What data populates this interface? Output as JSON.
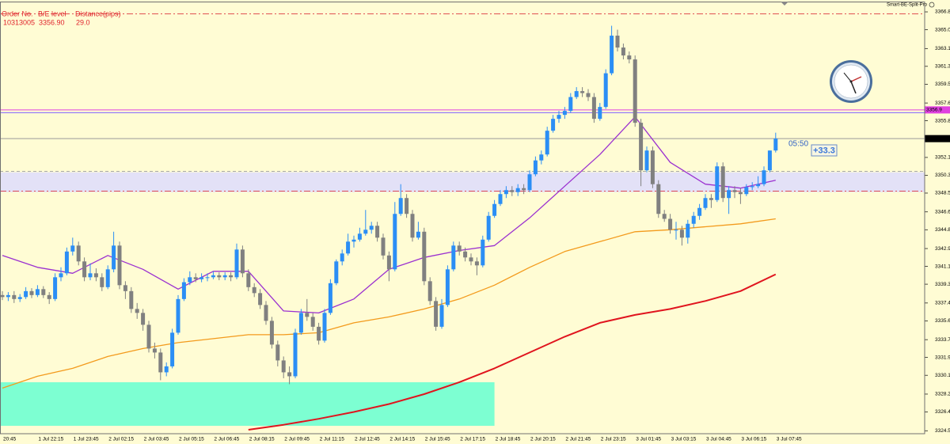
{
  "chart_data": {
    "type": "candlestick",
    "indicator_name": "Smart-BE-Split-Pro",
    "header": {
      "columns": [
        "Order No.",
        "B/E level",
        "Distance(pips)"
      ],
      "row": [
        "10313005",
        "3356.90",
        "29.0"
      ]
    },
    "countdown": "05:50",
    "profit_label": "+33.3",
    "up_color": "#2b8ef5",
    "down_color": "#808080",
    "ylim": [
      3324.2,
      3368.0
    ],
    "yticks": [
      3366.8,
      {
        "value": 3365.0,
        "label": "3365.0"
      },
      3363.1,
      3361.3,
      3359.5,
      3357.6,
      3355.8,
      3352.1,
      3350.3,
      3348.5,
      3346.6,
      3344.8,
      3342.9,
      3341.1,
      3339.3,
      3337.4,
      3335.6,
      3333.7,
      3331.9,
      3330.1,
      3328.2,
      3326.4,
      3324.5
    ],
    "current_price": {
      "value": 3354.0,
      "label": "3354.0"
    },
    "be_level": {
      "value": 3356.9,
      "label": "3356.9",
      "line_colors": [
        "#e040e0",
        "#8060ff"
      ]
    },
    "levels": [
      {
        "value": 3366.6,
        "color": "#e05050",
        "dash": "dashdot"
      },
      {
        "value": 3350.7,
        "color": "#a8a8a8",
        "dash": "dash"
      },
      {
        "value": 3348.7,
        "color": "#e05050",
        "dash": "dashdot"
      }
    ],
    "zone": {
      "from": 3348.6,
      "to": 3350.6,
      "color": "#e3e1f7"
    },
    "box": {
      "from": 3325.0,
      "to": 3329.4,
      "x_end": "2 Jul 18:45",
      "color": "#7dffd2"
    },
    "categories": [
      "20:45",
      null,
      null,
      null,
      null,
      null,
      "1 Jul 22:15",
      null,
      null,
      null,
      null,
      null,
      "1 Jul 23:45",
      null,
      null,
      null,
      null,
      null,
      "2 Jul 02:15",
      null,
      null,
      null,
      null,
      null,
      "2 Jul 03:45",
      null,
      null,
      null,
      null,
      null,
      "2 Jul 05:15",
      null,
      null,
      null,
      null,
      null,
      "2 Jul 06:45",
      null,
      null,
      null,
      null,
      null,
      "2 Jul 08:15",
      null,
      null,
      null,
      null,
      null,
      "2 Jul 09:45",
      null,
      null,
      null,
      null,
      null,
      "2 Jul 11:15",
      null,
      null,
      null,
      null,
      null,
      "2 Jul 12:45",
      null,
      null,
      null,
      null,
      null,
      "2 Jul 14:15",
      null,
      null,
      null,
      null,
      null,
      "2 Jul 15:45",
      null,
      null,
      null,
      null,
      null,
      "2 Jul 17:15",
      null,
      null,
      null,
      null,
      null,
      "2 Jul 18:45",
      null,
      null,
      null,
      null,
      null,
      "2 Jul 20:15",
      null,
      null,
      null,
      null,
      null,
      "2 Jul 21:45",
      null,
      null,
      null,
      null,
      null,
      "2 Jul 23:15",
      null,
      null,
      null,
      null,
      null,
      "3 Jul 01:45",
      null,
      null,
      null,
      null,
      null,
      "3 Jul 03:15",
      null,
      null,
      null,
      null,
      null,
      "3 Jul 04:45",
      null,
      null,
      null,
      null,
      null,
      "3 Jul 06:15",
      null,
      null,
      null,
      null,
      null,
      "3 Jul 07:45"
    ],
    "ohlc": [
      [
        3338.2,
        3338.6,
        3337.7,
        3338.0
      ],
      [
        3338.0,
        3338.5,
        3337.6,
        3338.2
      ],
      [
        3338.2,
        3338.6,
        3337.4,
        3337.8
      ],
      [
        3337.8,
        3338.3,
        3337.5,
        3338.0
      ],
      [
        3338.0,
        3339.0,
        3337.8,
        3338.6
      ],
      [
        3338.6,
        3338.9,
        3337.9,
        3338.2
      ],
      [
        3338.2,
        3339.2,
        3338.0,
        3338.8
      ],
      [
        3338.8,
        3339.1,
        3337.9,
        3338.2
      ],
      [
        3338.2,
        3338.5,
        3337.3,
        3337.8
      ],
      [
        3337.8,
        3340.4,
        3337.6,
        3340.0
      ],
      [
        3340.0,
        3341.0,
        3339.6,
        3340.4
      ],
      [
        3340.4,
        3343.0,
        3340.2,
        3342.6
      ],
      [
        3342.6,
        3344.0,
        3342.2,
        3343.2
      ],
      [
        3343.2,
        3343.6,
        3341.2,
        3341.6
      ],
      [
        3341.6,
        3342.0,
        3339.6,
        3340.0
      ],
      [
        3340.0,
        3341.4,
        3339.7,
        3340.4
      ],
      [
        3340.4,
        3340.9,
        3339.6,
        3340.0
      ],
      [
        3340.0,
        3340.4,
        3338.6,
        3339.0
      ],
      [
        3339.0,
        3341.2,
        3338.8,
        3340.8
      ],
      [
        3340.8,
        3344.6,
        3340.5,
        3343.2
      ],
      [
        3343.2,
        3343.6,
        3338.8,
        3339.2
      ],
      [
        3339.2,
        3339.6,
        3337.8,
        3338.6
      ],
      [
        3338.6,
        3339.0,
        3336.4,
        3336.8
      ],
      [
        3336.8,
        3337.4,
        3335.8,
        3336.4
      ],
      [
        3336.4,
        3336.8,
        3334.6,
        3335.2
      ],
      [
        3335.2,
        3335.6,
        3332.4,
        3332.8
      ],
      [
        3332.8,
        3333.4,
        3331.8,
        3332.4
      ],
      [
        3332.4,
        3332.8,
        3329.6,
        3330.4
      ],
      [
        3330.4,
        3331.4,
        3330.0,
        3331.0
      ],
      [
        3331.0,
        3334.8,
        3330.8,
        3334.4
      ],
      [
        3334.4,
        3338.2,
        3334.2,
        3337.8
      ],
      [
        3337.8,
        3339.9,
        3337.6,
        3339.5
      ],
      [
        3339.5,
        3340.6,
        3339.2,
        3340.0
      ],
      [
        3340.0,
        3340.4,
        3339.5,
        3339.8
      ],
      [
        3339.8,
        3340.4,
        3339.5,
        3340.0
      ],
      [
        3340.0,
        3340.4,
        3339.6,
        3340.0
      ],
      [
        3340.0,
        3340.6,
        3339.8,
        3340.2
      ],
      [
        3340.2,
        3340.5,
        3339.7,
        3340.0
      ],
      [
        3340.0,
        3340.5,
        3339.7,
        3340.2
      ],
      [
        3340.2,
        3340.5,
        3339.6,
        3340.0
      ],
      [
        3340.0,
        3343.4,
        3339.8,
        3342.8
      ],
      [
        3342.8,
        3343.2,
        3340.0,
        3340.4
      ],
      [
        3340.4,
        3340.8,
        3338.6,
        3339.0
      ],
      [
        3339.0,
        3339.4,
        3338.0,
        3338.4
      ],
      [
        3338.4,
        3338.8,
        3336.8,
        3337.2
      ],
      [
        3337.2,
        3337.6,
        3335.2,
        3335.6
      ],
      [
        3335.6,
        3336.0,
        3332.8,
        3333.2
      ],
      [
        3333.2,
        3333.6,
        3331.0,
        3331.6
      ],
      [
        3331.6,
        3332.0,
        3329.8,
        3330.4
      ],
      [
        3330.4,
        3331.0,
        3329.2,
        3330.0
      ],
      [
        3330.0,
        3334.8,
        3329.8,
        3334.4
      ],
      [
        3334.4,
        3336.8,
        3334.2,
        3336.4
      ],
      [
        3336.4,
        3337.8,
        3335.6,
        3336.0
      ],
      [
        3336.0,
        3336.4,
        3334.6,
        3335.0
      ],
      [
        3335.0,
        3335.4,
        3333.2,
        3333.6
      ],
      [
        3333.6,
        3336.8,
        3333.4,
        3336.4
      ],
      [
        3336.4,
        3339.8,
        3336.2,
        3339.4
      ],
      [
        3339.4,
        3341.8,
        3339.2,
        3341.6
      ],
      [
        3341.6,
        3342.8,
        3341.2,
        3342.4
      ],
      [
        3342.4,
        3344.4,
        3342.2,
        3343.6
      ],
      [
        3343.6,
        3344.2,
        3343.0,
        3343.8
      ],
      [
        3343.8,
        3345.0,
        3343.6,
        3344.4
      ],
      [
        3344.4,
        3346.8,
        3344.2,
        3344.8
      ],
      [
        3344.8,
        3345.6,
        3344.4,
        3345.2
      ],
      [
        3345.2,
        3345.6,
        3343.6,
        3344.0
      ],
      [
        3344.0,
        3344.4,
        3341.8,
        3342.2
      ],
      [
        3342.2,
        3342.6,
        3339.6,
        3340.8
      ],
      [
        3340.8,
        3347.6,
        3340.6,
        3346.4
      ],
      [
        3346.4,
        3349.4,
        3346.2,
        3348.0
      ],
      [
        3348.0,
        3348.4,
        3346.0,
        3346.4
      ],
      [
        3346.4,
        3346.8,
        3343.6,
        3344.0
      ],
      [
        3344.0,
        3345.6,
        3343.8,
        3344.6
      ],
      [
        3344.6,
        3345.0,
        3339.2,
        3339.6
      ],
      [
        3339.6,
        3340.0,
        3337.2,
        3337.6
      ],
      [
        3337.6,
        3338.0,
        3334.6,
        3335.0
      ],
      [
        3335.0,
        3337.8,
        3334.8,
        3337.2
      ],
      [
        3337.2,
        3341.2,
        3337.0,
        3340.8
      ],
      [
        3340.8,
        3343.6,
        3340.6,
        3343.2
      ],
      [
        3343.2,
        3343.6,
        3342.2,
        3342.6
      ],
      [
        3342.6,
        3343.0,
        3341.6,
        3342.0
      ],
      [
        3342.0,
        3342.4,
        3341.2,
        3341.6
      ],
      [
        3341.6,
        3342.0,
        3340.2,
        3341.2
      ],
      [
        3341.2,
        3344.2,
        3341.0,
        3343.8
      ],
      [
        3343.8,
        3346.6,
        3343.6,
        3346.2
      ],
      [
        3346.2,
        3347.8,
        3346.0,
        3347.4
      ],
      [
        3347.4,
        3348.8,
        3347.2,
        3348.4
      ],
      [
        3348.4,
        3349.2,
        3348.0,
        3348.8
      ],
      [
        3348.8,
        3349.2,
        3348.2,
        3348.6
      ],
      [
        3348.6,
        3349.4,
        3348.2,
        3349.0
      ],
      [
        3349.0,
        3349.4,
        3348.4,
        3348.8
      ],
      [
        3348.8,
        3350.8,
        3348.6,
        3350.4
      ],
      [
        3350.4,
        3352.2,
        3350.2,
        3351.8
      ],
      [
        3351.8,
        3352.8,
        3351.4,
        3352.4
      ],
      [
        3352.4,
        3355.2,
        3352.2,
        3354.8
      ],
      [
        3354.8,
        3356.4,
        3354.6,
        3356.0
      ],
      [
        3356.0,
        3356.8,
        3355.6,
        3356.4
      ],
      [
        3356.4,
        3357.2,
        3356.0,
        3356.8
      ],
      [
        3356.8,
        3358.6,
        3356.6,
        3358.2
      ],
      [
        3358.2,
        3359.2,
        3358.0,
        3358.8
      ],
      [
        3358.8,
        3359.2,
        3358.2,
        3358.6
      ],
      [
        3358.6,
        3359.0,
        3357.8,
        3358.2
      ],
      [
        3358.2,
        3358.6,
        3355.6,
        3356.0
      ],
      [
        3356.0,
        3357.6,
        3355.8,
        3357.2
      ],
      [
        3357.2,
        3361.0,
        3357.0,
        3360.6
      ],
      [
        3360.6,
        3365.4,
        3360.4,
        3364.4
      ],
      [
        3364.4,
        3365.0,
        3362.8,
        3363.2
      ],
      [
        3363.2,
        3363.6,
        3362.0,
        3362.4
      ],
      [
        3362.4,
        3362.8,
        3361.6,
        3362.0
      ],
      [
        3362.0,
        3362.4,
        3355.2,
        3355.6
      ],
      [
        3355.6,
        3356.0,
        3349.2,
        3350.8
      ],
      [
        3350.8,
        3353.2,
        3350.6,
        3352.8
      ],
      [
        3352.8,
        3353.2,
        3349.0,
        3349.4
      ],
      [
        3349.4,
        3349.8,
        3346.0,
        3346.4
      ],
      [
        3346.4,
        3346.8,
        3345.6,
        3345.9
      ],
      [
        3345.9,
        3346.4,
        3344.4,
        3344.8
      ],
      [
        3344.8,
        3345.6,
        3343.8,
        3344.8
      ],
      [
        3344.8,
        3345.2,
        3343.2,
        3344.0
      ],
      [
        3344.0,
        3345.8,
        3343.4,
        3345.4
      ],
      [
        3345.4,
        3346.6,
        3345.0,
        3346.2
      ],
      [
        3346.2,
        3347.4,
        3345.8,
        3347.0
      ],
      [
        3347.0,
        3348.4,
        3346.8,
        3348.0
      ],
      [
        3348.0,
        3348.4,
        3347.0,
        3347.8
      ],
      [
        3347.8,
        3351.6,
        3347.6,
        3351.2
      ],
      [
        3351.2,
        3351.6,
        3347.6,
        3348.0
      ],
      [
        3348.0,
        3349.2,
        3346.4,
        3348.8
      ],
      [
        3348.8,
        3349.2,
        3348.0,
        3348.6
      ],
      [
        3348.6,
        3349.0,
        3347.4,
        3348.4
      ],
      [
        3348.4,
        3349.4,
        3348.2,
        3349.1
      ],
      [
        3349.1,
        3349.6,
        3348.8,
        3349.2
      ],
      [
        3349.2,
        3350.2,
        3349.0,
        3349.4
      ],
      [
        3349.4,
        3351.2,
        3349.2,
        3350.8
      ],
      [
        3350.8,
        3352.8,
        3350.6,
        3352.8
      ],
      [
        3352.8,
        3354.6,
        3352.6,
        3354.0
      ]
    ],
    "series": [
      {
        "color": "#9b30d0",
        "x": [
          "20:45",
          "1 Jul 22:15",
          "1 Jul 23:45",
          "2 Jul 02:15",
          "2 Jul 03:45",
          "2 Jul 05:15",
          "2 Jul 06:45",
          "2 Jul 08:15",
          "2 Jul 09:45",
          "2 Jul 11:15",
          "2 Jul 12:45",
          "2 Jul 14:15",
          "2 Jul 15:45",
          "2 Jul 17:15",
          "2 Jul 18:45",
          "2 Jul 20:15",
          "2 Jul 21:45",
          "2 Jul 23:15",
          "3 Jul 01:45",
          "3 Jul 03:15",
          "3 Jul 04:45",
          "3 Jul 06:15",
          "3 Jul 07:45"
        ],
        "values": [
          3342.2,
          3341.0,
          3340.4,
          3342.2,
          3340.8,
          3338.8,
          3340.6,
          3340.6,
          3336.6,
          3336.4,
          3337.8,
          3340.8,
          3342.0,
          3342.7,
          3343.2,
          3346.0,
          3349.2,
          3352.4,
          3356.2,
          3351.6,
          3349.4,
          3349.0,
          3349.8
        ]
      },
      {
        "color": "#f39a1c",
        "x": [
          "20:45",
          "1 Jul 22:15",
          "1 Jul 23:45",
          "2 Jul 02:15",
          "2 Jul 03:45",
          "2 Jul 05:15",
          "2 Jul 06:45",
          "2 Jul 08:15",
          "2 Jul 09:45",
          "2 Jul 11:15",
          "2 Jul 12:45",
          "2 Jul 14:15",
          "2 Jul 15:45",
          "2 Jul 17:15",
          "2 Jul 18:45",
          "2 Jul 20:15",
          "2 Jul 21:45",
          "2 Jul 23:15",
          "3 Jul 01:45",
          "3 Jul 03:15",
          "3 Jul 04:45",
          "3 Jul 06:15",
          "3 Jul 07:45"
        ],
        "values": [
          3328.8,
          3330.0,
          3330.8,
          3332.0,
          3332.8,
          3333.4,
          3333.8,
          3334.2,
          3334.2,
          3334.4,
          3335.4,
          3336.0,
          3336.8,
          3337.8,
          3339.2,
          3341.0,
          3342.6,
          3343.6,
          3344.6,
          3344.8,
          3345.1,
          3345.4,
          3345.9
        ]
      },
      {
        "color": "#e0141e",
        "x": [
          "2 Jul 08:15",
          "2 Jul 09:45",
          "2 Jul 11:15",
          "2 Jul 12:45",
          "2 Jul 14:15",
          "2 Jul 15:45",
          "2 Jul 17:15",
          "2 Jul 18:45",
          "2 Jul 20:15",
          "2 Jul 21:45",
          "2 Jul 23:15",
          "3 Jul 01:45",
          "3 Jul 03:15",
          "3 Jul 04:45",
          "3 Jul 06:15",
          "3 Jul 07:45"
        ],
        "values": [
          3324.6,
          3325.1,
          3325.7,
          3326.4,
          3327.2,
          3328.2,
          3329.4,
          3330.8,
          3332.4,
          3334.0,
          3335.4,
          3336.2,
          3336.8,
          3337.6,
          3338.6,
          3340.3
        ]
      }
    ]
  }
}
